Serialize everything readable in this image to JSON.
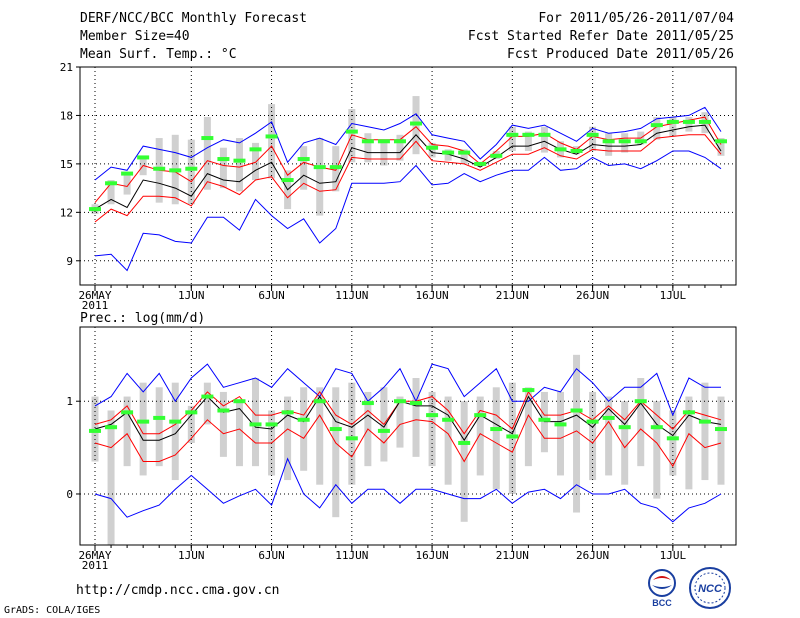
{
  "header": {
    "title": "DERF/NCC/BCC Monthly Forecast",
    "member": "Member Size=40",
    "variable": "Mean Surf. Temp.: °C",
    "period": "For 2011/05/26-2011/07/04",
    "started": "Fcst Started Refer Date 2011/05/25",
    "produced": "Fcst Produced Date 2011/05/26"
  },
  "footer": {
    "url": "http://cmdp.ncc.cma.gov.cn",
    "grads": "GrADS: COLA/IGES"
  },
  "logos": {
    "bcc": "BCC",
    "ncc": "NCC"
  },
  "colors": {
    "ensemble_mean": "#000000",
    "spread": "#ff0000",
    "extremes": "#0000ff",
    "box": "#d0d0d0",
    "median": "#33ff33",
    "grid": "#000000"
  },
  "chart_data": [
    {
      "type": "line",
      "title": "Mean Surf. Temp.: °C",
      "ylim": [
        7.5,
        21
      ],
      "yticks": [
        9,
        12,
        15,
        18,
        21
      ],
      "x": [
        1,
        2,
        3,
        4,
        5,
        6,
        7,
        8,
        9,
        10,
        11,
        12,
        13,
        14,
        15,
        16,
        17,
        18,
        19,
        20,
        21,
        22,
        23,
        24,
        25,
        26,
        27,
        28,
        29,
        30,
        31,
        32,
        33,
        34,
        35,
        36,
        37,
        38,
        39,
        40
      ],
      "xtick_labels": [
        {
          "day": 1,
          "label": "26MAY",
          "sub": "2011"
        },
        {
          "day": 7,
          "label": "1JUN"
        },
        {
          "day": 12,
          "label": "6JUN"
        },
        {
          "day": 17,
          "label": "11JUN"
        },
        {
          "day": 22,
          "label": "16JUN"
        },
        {
          "day": 27,
          "label": "21JUN"
        },
        {
          "day": 32,
          "label": "26JUN"
        },
        {
          "day": 37,
          "label": "1JUL"
        }
      ],
      "series": [
        {
          "name": "max",
          "color": "#0000ff",
          "values": [
            14.0,
            14.8,
            14.6,
            16.1,
            15.9,
            15.7,
            15.4,
            16.0,
            16.5,
            16.3,
            16.9,
            17.6,
            15.1,
            16.3,
            16.6,
            16.2,
            17.5,
            17.3,
            17.1,
            17.5,
            18.1,
            16.8,
            16.6,
            16.4,
            15.3,
            16.2,
            17.4,
            17.2,
            17.4,
            16.9,
            16.4,
            17.2,
            16.9,
            17.0,
            17.2,
            17.8,
            17.9,
            18.0,
            18.5,
            17.0
          ]
        },
        {
          "name": "upper",
          "color": "#ff0000",
          "values": [
            12.6,
            13.8,
            13.6,
            14.9,
            14.6,
            14.5,
            13.9,
            15.2,
            14.9,
            14.8,
            15.1,
            16.1,
            14.3,
            15.1,
            14.8,
            14.6,
            16.8,
            16.5,
            16.5,
            16.5,
            17.3,
            16.2,
            16.1,
            15.8,
            15.0,
            15.8,
            16.7,
            16.7,
            16.9,
            16.3,
            15.9,
            16.7,
            16.5,
            16.6,
            16.6,
            17.3,
            17.5,
            17.7,
            17.9,
            16.2
          ]
        },
        {
          "name": "mean",
          "color": "#000000",
          "values": [
            12.2,
            12.8,
            12.3,
            14.0,
            13.8,
            13.5,
            13.0,
            14.4,
            14.0,
            13.9,
            14.6,
            15.1,
            13.4,
            14.3,
            13.8,
            13.9,
            16.0,
            15.7,
            15.7,
            15.7,
            16.8,
            15.7,
            15.6,
            15.3,
            14.8,
            15.4,
            16.1,
            16.1,
            16.4,
            15.9,
            15.6,
            16.2,
            16.1,
            16.1,
            16.2,
            16.9,
            17.1,
            17.3,
            17.4,
            15.8
          ]
        },
        {
          "name": "lower",
          "color": "#ff0000",
          "values": [
            11.4,
            12.2,
            11.8,
            13.0,
            13.0,
            12.9,
            12.4,
            13.9,
            13.6,
            13.1,
            14.0,
            14.2,
            12.9,
            13.8,
            13.3,
            13.4,
            15.4,
            15.3,
            15.3,
            15.3,
            16.4,
            15.2,
            15.1,
            15.0,
            14.6,
            15.1,
            15.6,
            15.6,
            16.0,
            15.5,
            15.3,
            15.9,
            15.8,
            15.8,
            15.8,
            16.6,
            16.7,
            16.8,
            16.8,
            15.6
          ]
        },
        {
          "name": "min",
          "color": "#0000ff",
          "values": [
            9.3,
            9.4,
            8.4,
            10.7,
            10.6,
            10.2,
            10.1,
            11.7,
            11.7,
            10.9,
            12.8,
            11.8,
            11.0,
            11.6,
            10.1,
            11.0,
            13.8,
            13.8,
            13.8,
            13.9,
            14.9,
            13.7,
            13.8,
            14.4,
            13.9,
            14.3,
            14.6,
            14.6,
            15.4,
            14.6,
            14.7,
            15.4,
            14.9,
            15.0,
            14.7,
            15.2,
            15.8,
            15.8,
            15.4,
            14.7
          ]
        }
      ],
      "boxes": {
        "low": [
          11.9,
          12.5,
          13.1,
          14.3,
          12.6,
          12.5,
          12.5,
          13.4,
          13.5,
          13.3,
          14.0,
          14.1,
          12.2,
          13.4,
          11.8,
          13.3,
          15.1,
          15.1,
          14.9,
          15.2,
          15.6,
          15.4,
          15.2,
          15.0,
          14.9,
          15.3,
          15.8,
          15.8,
          15.7,
          15.4,
          15.6,
          15.8,
          15.5,
          15.7,
          16.2,
          16.5,
          16.7,
          17.0,
          16.9,
          15.5
        ],
        "high": [
          12.5,
          14.0,
          14.4,
          15.5,
          16.6,
          16.8,
          16.5,
          17.9,
          16.0,
          16.6,
          16.3,
          18.7,
          14.6,
          16.1,
          16.6,
          16.1,
          18.4,
          16.9,
          16.5,
          16.8,
          19.2,
          16.3,
          15.9,
          15.9,
          15.0,
          15.8,
          17.3,
          17.0,
          17.3,
          16.4,
          16.1,
          17.3,
          16.9,
          16.9,
          17.0,
          17.9,
          17.9,
          17.9,
          18.2,
          16.6
        ],
        "median": [
          12.2,
          13.8,
          14.4,
          15.4,
          14.7,
          14.6,
          14.7,
          16.6,
          15.3,
          15.2,
          15.9,
          16.7,
          14.0,
          15.3,
          14.8,
          14.8,
          17.0,
          16.4,
          16.4,
          16.4,
          17.5,
          16.0,
          15.7,
          15.7,
          15.0,
          15.5,
          16.8,
          16.8,
          16.8,
          15.9,
          15.8,
          16.8,
          16.4,
          16.4,
          16.4,
          17.4,
          17.6,
          17.6,
          17.6,
          16.4
        ]
      }
    },
    {
      "type": "line",
      "title": "Prec.: log(mm/d)",
      "ylim": [
        -0.55,
        1.8
      ],
      "yticks": [
        0,
        1
      ],
      "x": [
        1,
        2,
        3,
        4,
        5,
        6,
        7,
        8,
        9,
        10,
        11,
        12,
        13,
        14,
        15,
        16,
        17,
        18,
        19,
        20,
        21,
        22,
        23,
        24,
        25,
        26,
        27,
        28,
        29,
        30,
        31,
        32,
        33,
        34,
        35,
        36,
        37,
        38,
        39,
        40
      ],
      "xtick_labels": [
        {
          "day": 1,
          "label": "26MAY",
          "sub": "2011"
        },
        {
          "day": 7,
          "label": "1JUN"
        },
        {
          "day": 12,
          "label": "6JUN"
        },
        {
          "day": 17,
          "label": "11JUN"
        },
        {
          "day": 22,
          "label": "16JUN"
        },
        {
          "day": 27,
          "label": "21JUN"
        },
        {
          "day": 32,
          "label": "26JUN"
        },
        {
          "day": 37,
          "label": "1JUL"
        }
      ],
      "series": [
        {
          "name": "max",
          "color": "#0000ff",
          "values": [
            0.95,
            1.05,
            1.3,
            1.1,
            1.3,
            1.0,
            1.25,
            1.4,
            1.15,
            1.2,
            1.25,
            1.15,
            1.35,
            1.2,
            1.05,
            1.35,
            1.3,
            1.0,
            1.15,
            1.35,
            1.0,
            1.4,
            1.35,
            1.05,
            1.2,
            1.35,
            1.0,
            1.0,
            1.15,
            1.1,
            1.35,
            1.2,
            1.0,
            1.15,
            1.15,
            1.3,
            0.85,
            1.25,
            1.15,
            1.15
          ]
        },
        {
          "name": "upper",
          "color": "#ff0000",
          "values": [
            0.75,
            0.8,
            0.95,
            0.65,
            0.65,
            0.75,
            0.9,
            1.1,
            0.95,
            1.05,
            0.85,
            0.85,
            0.9,
            0.85,
            1.1,
            0.85,
            0.75,
            0.9,
            0.75,
            1.0,
            1.0,
            1.05,
            0.9,
            0.65,
            0.9,
            0.85,
            0.7,
            1.1,
            0.85,
            0.85,
            0.9,
            0.8,
            0.95,
            0.8,
            1.0,
            0.85,
            0.7,
            0.9,
            0.85,
            0.8
          ]
        },
        {
          "name": "mean",
          "color": "#000000",
          "values": [
            0.7,
            0.75,
            0.88,
            0.58,
            0.58,
            0.65,
            0.85,
            1.05,
            0.88,
            0.92,
            0.72,
            0.7,
            0.85,
            0.78,
            1.05,
            0.78,
            0.72,
            0.85,
            0.72,
            1.0,
            0.95,
            0.95,
            0.85,
            0.58,
            0.85,
            0.75,
            0.65,
            1.05,
            0.78,
            0.78,
            0.85,
            0.72,
            0.92,
            0.75,
            0.98,
            0.75,
            0.63,
            0.85,
            0.78,
            0.75
          ]
        },
        {
          "name": "lower",
          "color": "#ff0000",
          "values": [
            0.55,
            0.5,
            0.65,
            0.35,
            0.35,
            0.42,
            0.6,
            0.8,
            0.65,
            0.7,
            0.55,
            0.55,
            0.7,
            0.6,
            0.85,
            0.55,
            0.4,
            0.7,
            0.55,
            0.75,
            0.8,
            0.78,
            0.65,
            0.35,
            0.65,
            0.55,
            0.45,
            0.85,
            0.6,
            0.6,
            0.68,
            0.55,
            0.78,
            0.5,
            0.7,
            0.55,
            0.3,
            0.65,
            0.5,
            0.55
          ]
        },
        {
          "name": "min",
          "color": "#0000ff",
          "values": [
            0.0,
            -0.05,
            -0.25,
            -0.18,
            -0.12,
            0.05,
            0.2,
            0.05,
            -0.1,
            -0.02,
            0.05,
            -0.12,
            0.38,
            0.0,
            -0.15,
            0.1,
            -0.1,
            0.05,
            0.05,
            -0.1,
            0.05,
            0.05,
            0.0,
            -0.05,
            -0.05,
            0.05,
            -0.1,
            0.02,
            0.05,
            -0.05,
            0.1,
            0.0,
            0.0,
            0.05,
            -0.1,
            -0.15,
            -0.3,
            -0.15,
            -0.1,
            0.0
          ]
        }
      ],
      "boxes": {
        "low": [
          0.35,
          -0.55,
          0.3,
          0.2,
          0.3,
          0.15,
          0.55,
          0.75,
          0.4,
          0.3,
          0.3,
          0.2,
          0.15,
          0.25,
          0.1,
          -0.25,
          0.1,
          0.3,
          0.35,
          0.5,
          0.4,
          0.3,
          0.1,
          -0.3,
          0.2,
          0.05,
          0.0,
          0.3,
          0.45,
          0.2,
          -0.2,
          0.15,
          0.2,
          0.1,
          0.3,
          -0.05,
          0.2,
          0.05,
          0.15,
          0.1
        ],
        "high": [
          1.05,
          0.9,
          1.05,
          1.2,
          1.15,
          1.2,
          0.95,
          1.2,
          1.1,
          1.0,
          1.25,
          0.9,
          1.05,
          1.15,
          1.15,
          1.15,
          1.2,
          1.1,
          1.15,
          1.05,
          1.25,
          1.1,
          1.05,
          1.0,
          1.05,
          1.15,
          1.2,
          1.15,
          1.1,
          1.1,
          1.5,
          1.1,
          1.05,
          1.0,
          1.25,
          1.0,
          0.9,
          1.05,
          1.2,
          1.05
        ],
        "median": [
          0.68,
          0.72,
          0.88,
          0.78,
          0.82,
          0.78,
          0.88,
          1.05,
          0.9,
          1.0,
          0.75,
          0.75,
          0.88,
          0.8,
          1.0,
          0.7,
          0.6,
          0.98,
          0.68,
          1.0,
          0.98,
          0.85,
          0.8,
          0.55,
          0.85,
          0.7,
          0.62,
          1.12,
          0.8,
          0.75,
          0.9,
          0.78,
          0.82,
          0.72,
          1.0,
          0.72,
          0.6,
          0.88,
          0.78,
          0.7
        ]
      }
    }
  ]
}
